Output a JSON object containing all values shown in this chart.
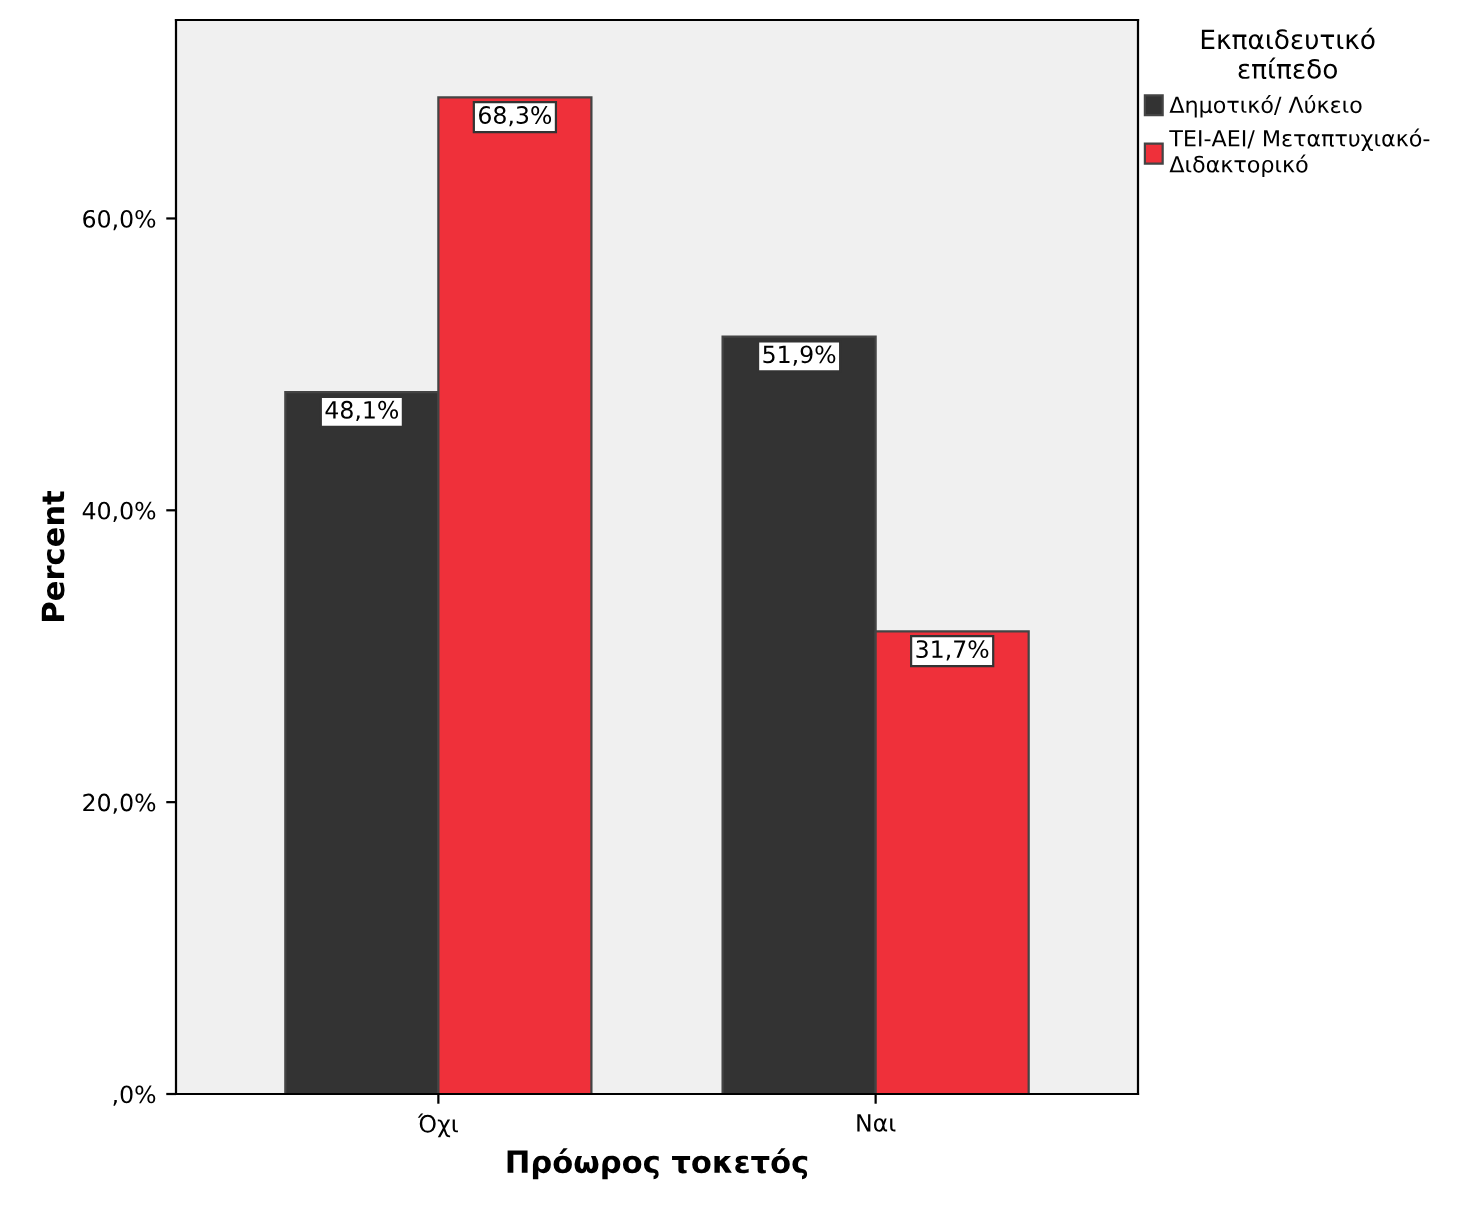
{
  "chart_data": {
    "type": "bar",
    "xlabel": "Πρόωρος τοκετός",
    "ylabel": "Percent",
    "legend_title": "Εκπαιδευτικό\nεπίπεδο",
    "categories": [
      "Όχι",
      "Ναι"
    ],
    "series": [
      {
        "name": "Δημοτικό/ Λύκειο",
        "color": "#333333",
        "values": [
          48.1,
          51.9
        ],
        "value_labels": [
          "48,1%",
          "51,9%"
        ]
      },
      {
        "name": "ΤΕΙ-ΑΕΙ/ Μεταπτυχιακό-\nΔιδακτορικό",
        "color": "#ef303a",
        "values": [
          68.3,
          31.7
        ],
        "value_labels": [
          "68,3%",
          "31,7%"
        ]
      }
    ],
    "ylim": [
      0,
      73.6
    ],
    "yticks": [
      {
        "value": 0,
        "label": ",0%"
      },
      {
        "value": 20,
        "label": "20,0%"
      },
      {
        "value": 40,
        "label": "40,0%"
      },
      {
        "value": 60,
        "label": "60,0%"
      }
    ],
    "grid": false,
    "legend": "top right"
  }
}
